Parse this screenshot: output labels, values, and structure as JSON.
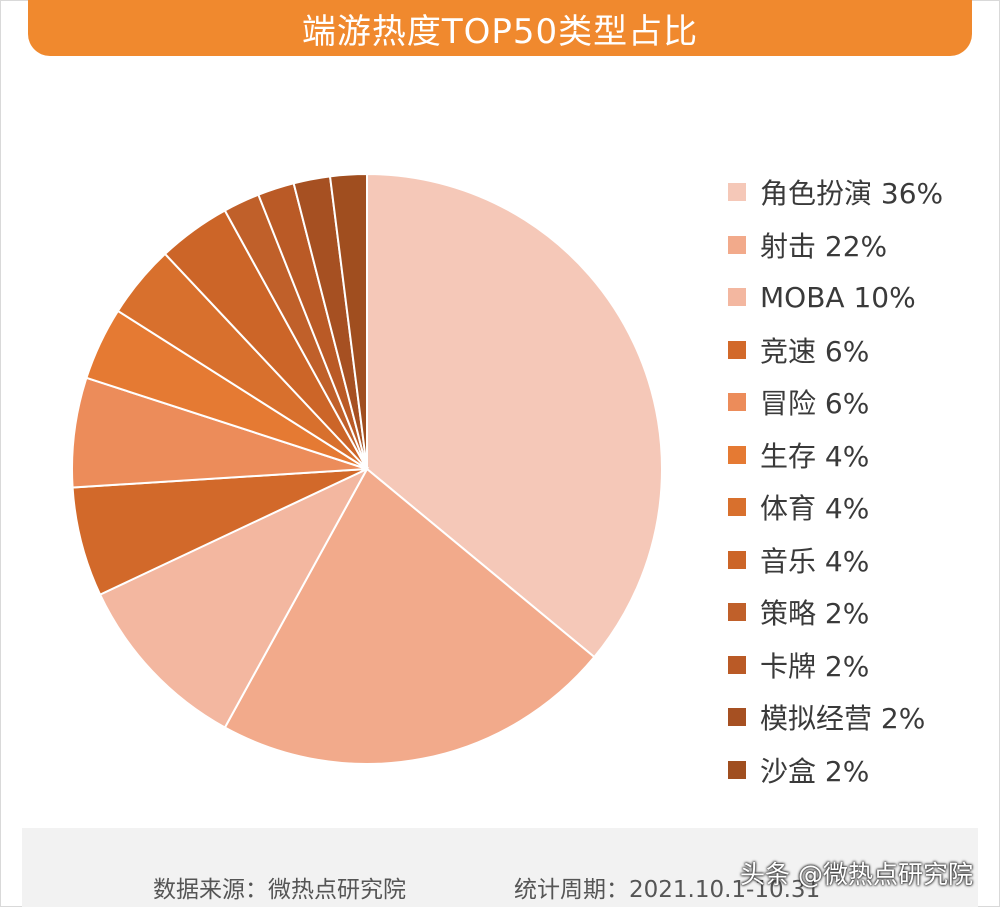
{
  "title": "端游热度TOP50类型占比",
  "chart_data": {
    "type": "pie",
    "title": "端游热度TOP50类型占比",
    "legend_position": "right",
    "slices": [
      {
        "label": "角色扮演",
        "value": 36,
        "legend": "角色扮演 36%",
        "color": "#f5c8b8"
      },
      {
        "label": "射击",
        "value": 22,
        "legend": "射击 22%",
        "color": "#f2aa8b"
      },
      {
        "label": "MOBA",
        "value": 10,
        "legend": "MOBA 10%",
        "color": "#f3b7a0"
      },
      {
        "label": "竞速",
        "value": 6,
        "legend": "竞速 6%",
        "color": "#d2692a"
      },
      {
        "label": "冒险",
        "value": 6,
        "legend": "冒险 6%",
        "color": "#ec8c5a"
      },
      {
        "label": "生存",
        "value": 4,
        "legend": "生存 4%",
        "color": "#e57a33"
      },
      {
        "label": "体育",
        "value": 4,
        "legend": "体育 4%",
        "color": "#d8702d"
      },
      {
        "label": "音乐",
        "value": 4,
        "legend": "音乐 4%",
        "color": "#cc6528"
      },
      {
        "label": "策略",
        "value": 2,
        "legend": "策略 2%",
        "color": "#c0602a"
      },
      {
        "label": "卡牌",
        "value": 2,
        "legend": "卡牌 2%",
        "color": "#ba5a26"
      },
      {
        "label": "模拟经营",
        "value": 2,
        "legend": "模拟经营 2%",
        "color": "#a65022"
      },
      {
        "label": "沙盒",
        "value": 2,
        "legend": "沙盒 2%",
        "color": "#a04e1f"
      }
    ]
  },
  "footer": {
    "source": "数据来源：微热点研究院",
    "period": "统计周期：2021.10.1-10.31"
  },
  "watermark": "头条 @微热点研究院",
  "colors": {
    "banner": "#f0892e",
    "footer_bg": "#f2f2f2"
  }
}
